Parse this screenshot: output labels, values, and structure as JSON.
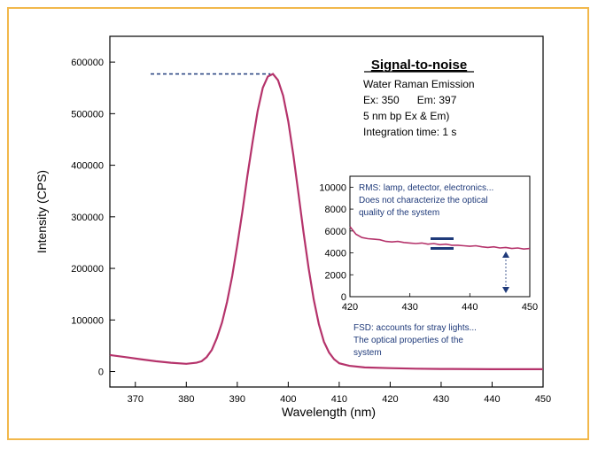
{
  "chart_data": {
    "type": "line",
    "xlabel": "Wavelength (nm)",
    "ylabel": "Intensity (CPS)",
    "xlim": [
      365,
      450
    ],
    "ylim": [
      -30000,
      650000
    ],
    "xticks": [
      370,
      380,
      390,
      400,
      410,
      420,
      430,
      440,
      450
    ],
    "yticks": [
      0,
      100000,
      200000,
      300000,
      400000,
      500000,
      600000
    ],
    "grid": false,
    "series": [
      {
        "color": "#b5336b",
        "x": [
          365,
          368,
          371,
          374,
          377,
          380,
          382,
          383,
          384,
          385,
          386,
          387,
          388,
          389,
          390,
          391,
          392,
          393,
          394,
          395,
          396,
          397,
          398,
          399,
          400,
          401,
          402,
          403,
          404,
          405,
          406,
          407,
          408,
          409,
          410,
          412,
          415,
          420,
          425,
          430,
          440,
          450
        ],
        "y": [
          32000,
          28000,
          24000,
          20000,
          17000,
          15000,
          17000,
          20000,
          28000,
          42000,
          65000,
          95000,
          135000,
          185000,
          245000,
          310000,
          380000,
          445000,
          505000,
          550000,
          572000,
          577000,
          565000,
          535000,
          485000,
          420000,
          345000,
          270000,
          200000,
          140000,
          92000,
          58000,
          37000,
          24000,
          16000,
          11000,
          8000,
          6500,
          5500,
          5000,
          4600,
          4500
        ]
      }
    ],
    "annotation": {
      "title": "Signal-to-noise",
      "lines": [
        "Water Raman Emission",
        "Ex: 350      Em: 397",
        "5 nm bp Ex & Em)",
        "Integration time: 1 s"
      ],
      "peak_line_color": "#1f3a7a"
    },
    "inset": {
      "type": "line",
      "xlim": [
        420,
        450
      ],
      "ylim": [
        0,
        11000
      ],
      "xticks": [
        420,
        430,
        440,
        450
      ],
      "yticks": [
        0,
        2000,
        4000,
        6000,
        8000,
        10000
      ],
      "x": [
        420,
        421,
        422,
        423,
        424,
        425,
        426,
        427,
        428,
        429,
        430,
        431,
        432,
        433,
        434,
        435,
        436,
        437,
        438,
        439,
        440,
        441,
        442,
        443,
        444,
        445,
        446,
        447,
        448,
        449,
        450
      ],
      "y": [
        6400,
        5700,
        5400,
        5300,
        5250,
        5200,
        5050,
        5000,
        5050,
        4950,
        4900,
        4850,
        4900,
        4800,
        4850,
        4750,
        4800,
        4700,
        4700,
        4650,
        4600,
        4650,
        4550,
        4500,
        4550,
        4450,
        4500,
        4400,
        4450,
        4350,
        4400
      ],
      "rms_text": [
        "RMS: lamp, detector, electronics...",
        "Does not characterize the optical",
        "quality of the system"
      ],
      "fsd_text": [
        "FSD: accounts for stray lights...",
        "The optical properties of the",
        "system"
      ],
      "annotation_color": "#1f3a7a"
    }
  }
}
